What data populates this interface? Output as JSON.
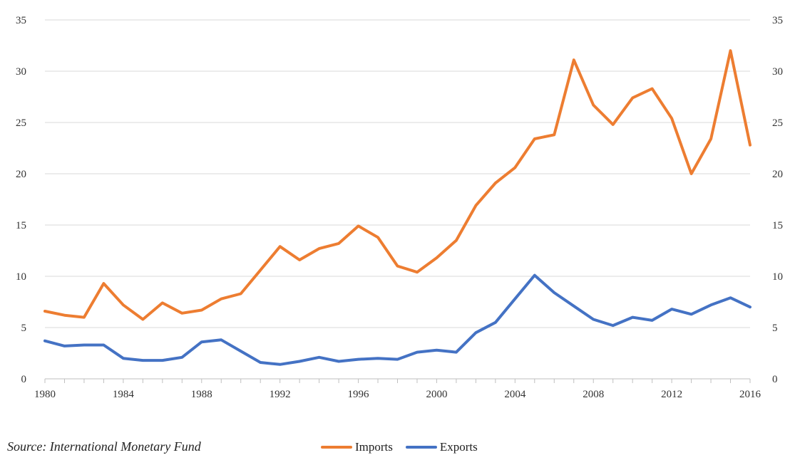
{
  "colors": {
    "imports": "#ED7D31",
    "exports": "#4472C4",
    "grid": "#D9D9D9"
  },
  "chart_data": {
    "type": "line",
    "title": "",
    "xlabel": "",
    "ylabel": "",
    "x": [
      1980,
      1981,
      1982,
      1983,
      1984,
      1985,
      1986,
      1987,
      1988,
      1989,
      1990,
      1991,
      1992,
      1993,
      1994,
      1995,
      1996,
      1997,
      1998,
      1999,
      2000,
      2001,
      2002,
      2003,
      2004,
      2005,
      2006,
      2007,
      2008,
      2009,
      2010,
      2011,
      2012,
      2013,
      2014,
      2015,
      2016
    ],
    "x_ticks": [
      1980,
      1984,
      1988,
      1992,
      1996,
      2000,
      2004,
      2008,
      2012,
      2016
    ],
    "y_ticks": [
      0,
      5,
      10,
      15,
      20,
      25,
      30,
      35
    ],
    "xlim": [
      1980,
      2016
    ],
    "ylim": [
      0,
      35
    ],
    "grid": true,
    "secondary_axis": true,
    "series": [
      {
        "name": "Imports",
        "color": "#ED7D31",
        "values": [
          6.6,
          6.2,
          6.0,
          9.3,
          7.2,
          5.8,
          7.4,
          6.4,
          6.7,
          7.8,
          8.3,
          10.6,
          12.9,
          11.6,
          12.7,
          13.2,
          14.9,
          13.8,
          11.0,
          10.4,
          11.8,
          13.5,
          16.9,
          19.1,
          20.6,
          23.4,
          23.8,
          31.1,
          26.7,
          24.8,
          27.4,
          28.3,
          25.4,
          20.0,
          23.4,
          32.0,
          22.8
        ]
      },
      {
        "name": "Exports",
        "color": "#4472C4",
        "values": [
          3.7,
          3.2,
          3.3,
          3.3,
          2.0,
          1.8,
          1.8,
          2.1,
          3.6,
          3.8,
          2.7,
          1.6,
          1.4,
          1.7,
          2.1,
          1.7,
          1.9,
          2.0,
          1.9,
          2.6,
          2.8,
          2.6,
          4.5,
          5.5,
          7.8,
          10.1,
          8.4,
          7.1,
          5.8,
          5.2,
          6.0,
          5.7,
          6.8,
          6.3,
          7.2,
          7.9,
          7.0
        ]
      }
    ],
    "legend": {
      "position": "bottom",
      "entries": [
        "Imports",
        "Exports"
      ]
    },
    "source": "Source: International Monetary Fund"
  }
}
